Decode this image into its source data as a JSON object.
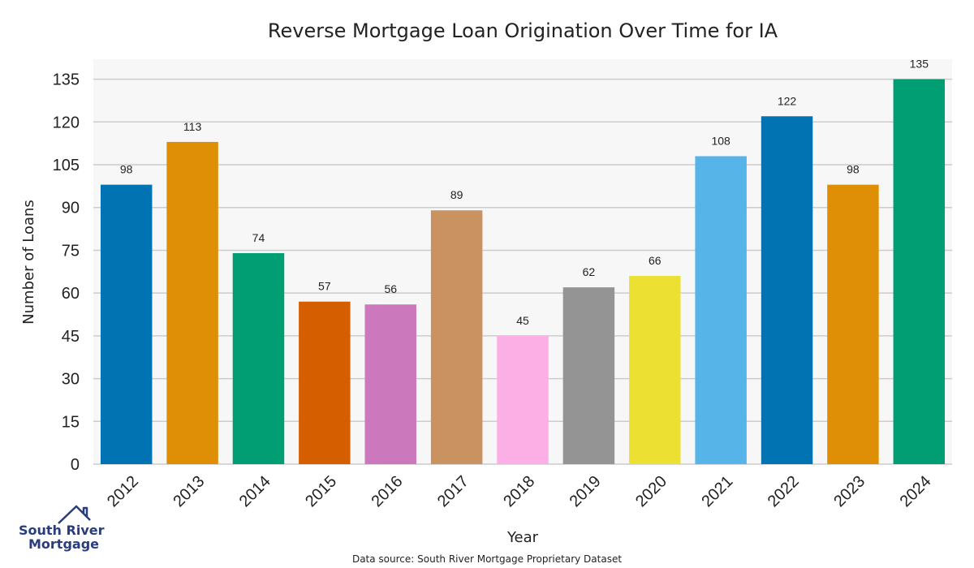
{
  "chart_data": {
    "type": "bar",
    "title": "Reverse Mortgage Loan Origination Over Time for IA",
    "xlabel": "Year",
    "ylabel": "Number of Loans",
    "categories": [
      "2012",
      "2013",
      "2014",
      "2015",
      "2016",
      "2017",
      "2018",
      "2019",
      "2020",
      "2021",
      "2022",
      "2023",
      "2024"
    ],
    "values": [
      98,
      113,
      74,
      57,
      56,
      89,
      45,
      62,
      66,
      108,
      122,
      98,
      135
    ],
    "colors": [
      "#0173b2",
      "#de8f05",
      "#029e73",
      "#d55e00",
      "#cc78bc",
      "#ca9161",
      "#fbafe4",
      "#949494",
      "#ece133",
      "#56b4e9",
      "#0173b2",
      "#de8f05",
      "#029e73"
    ],
    "ylim": [
      0,
      142
    ],
    "yticks": [
      0,
      15,
      30,
      45,
      60,
      75,
      90,
      105,
      120,
      135
    ],
    "grid": true,
    "data_labels": true,
    "background": "#f7f7f7",
    "gridline_color": "#cccccc"
  },
  "footer": {
    "source": "Data source: South River Mortgage Proprietary Dataset"
  },
  "logo": {
    "line1": "South River",
    "line2": "Mortgage",
    "color": "#2a3d7c"
  }
}
